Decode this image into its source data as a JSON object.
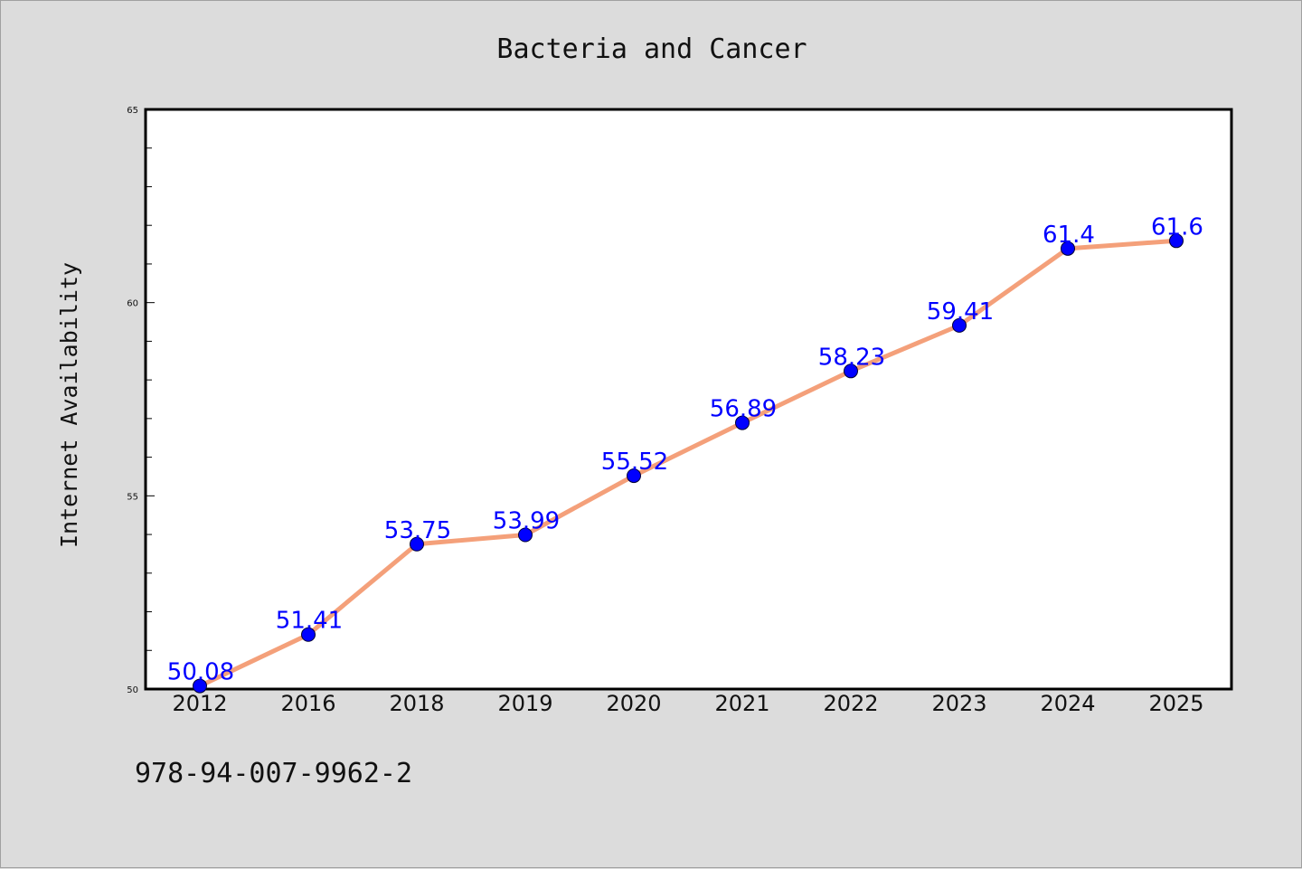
{
  "chart_data": {
    "type": "line",
    "title": "Bacteria and Cancer",
    "xlabel": "",
    "ylabel": "Internet Availability",
    "categories": [
      "2012",
      "2016",
      "2018",
      "2019",
      "2020",
      "2021",
      "2022",
      "2023",
      "2024",
      "2025"
    ],
    "series": [
      {
        "values": [
          50.08,
          51.41,
          53.75,
          53.99,
          55.52,
          56.89,
          58.23,
          59.41,
          61.4,
          61.6
        ],
        "data_labels": [
          "50.08",
          "51.41",
          "53.75",
          "53.99",
          "55.52",
          "56.89",
          "58.23",
          "59.41",
          "61.4",
          "61.6"
        ],
        "line_color": "#f4a07a",
        "marker_color": "#0000ff"
      }
    ],
    "ylim": [
      50,
      65
    ],
    "yticks": [
      50,
      55,
      60,
      65
    ],
    "ytick_labels": [
      "50",
      "55",
      "60",
      "65"
    ],
    "grid": false,
    "legend": "none"
  },
  "footer": {
    "text": "978-94-007-9962-2"
  },
  "colors": {
    "background": "#dcdcdc",
    "plot_background": "#ffffff",
    "axis": "#000000"
  }
}
